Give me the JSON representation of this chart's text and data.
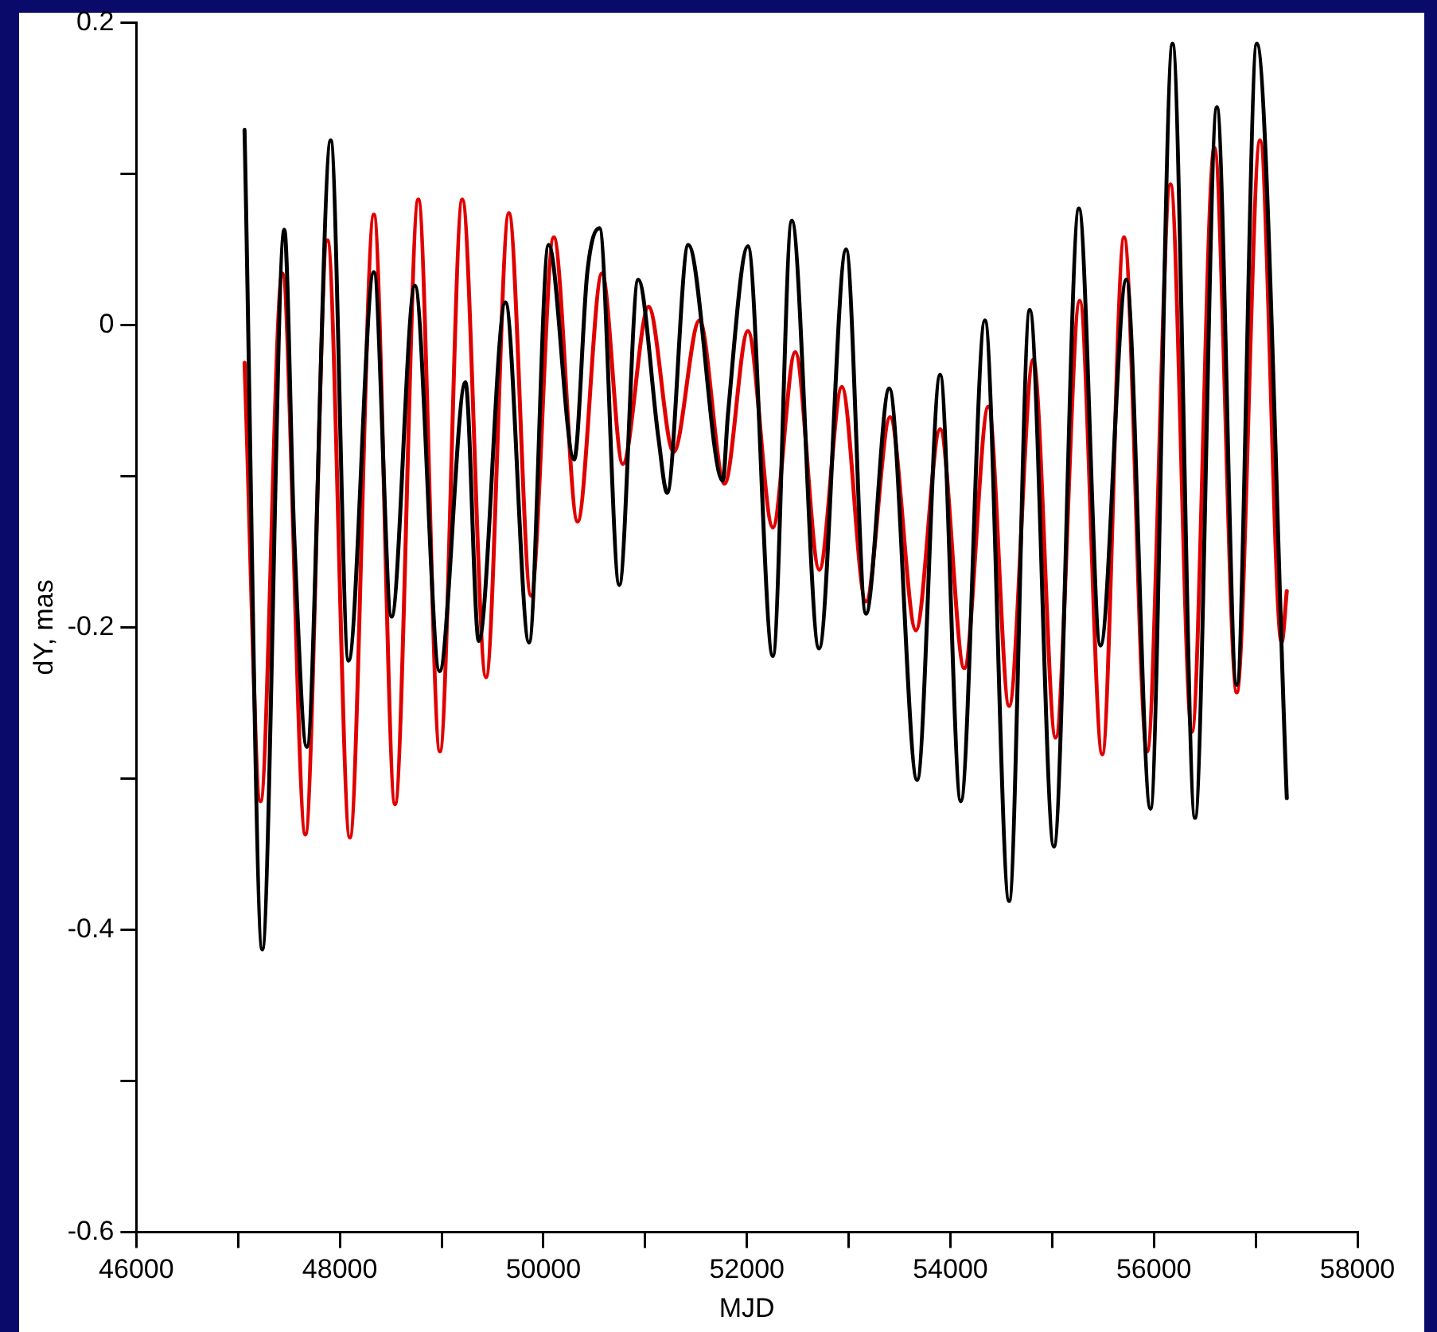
{
  "chart_data": {
    "type": "line",
    "xlabel": "MJD",
    "ylabel": "dY, mas",
    "xlim": [
      46000,
      58000
    ],
    "xticks": [
      46000,
      {
        "value": 47000,
        "label": null
      },
      48000,
      {
        "value": 49000,
        "label": null
      },
      50000,
      {
        "value": 51000,
        "label": null
      },
      52000,
      {
        "value": 53000,
        "label": null
      },
      54000,
      {
        "value": 55000,
        "label": null
      },
      56000,
      {
        "value": 57000,
        "label": null
      },
      58000
    ],
    "ylim": [
      -0.6,
      0.2
    ],
    "yticks": [
      -0.6,
      {
        "value": -0.5,
        "label": null
      },
      -0.4,
      {
        "value": -0.3,
        "label": null
      },
      -0.2,
      {
        "value": -0.1,
        "label": null
      },
      0,
      {
        "value": 0.1,
        "label": null
      },
      0.2
    ],
    "grid": false,
    "legend": false,
    "marker": "none",
    "line_style": "solid",
    "series": [
      {
        "color": "#000000",
        "x": [
          47063,
          47237,
          47454,
          47551,
          47675,
          47910,
          48085,
          48334,
          48508,
          48737,
          48980,
          49234,
          49365,
          49627,
          49859,
          50051,
          50302,
          50432,
          50551,
          50746,
          50932,
          51131,
          51216,
          51424,
          51763,
          51814,
          52010,
          52255,
          52441,
          52709,
          52975,
          53170,
          53399,
          53673,
          53899,
          54102,
          54339,
          54577,
          54780,
          55017,
          55263,
          55475,
          55729,
          55966,
          56183,
          56404,
          56619,
          56814,
          57011,
          57306
        ],
        "values": [
          0.129,
          -0.413,
          0.063,
          -0.139,
          -0.279,
          0.122,
          -0.222,
          0.035,
          -0.193,
          0.026,
          -0.229,
          -0.038,
          -0.209,
          0.015,
          -0.21,
          0.053,
          -0.089,
          0.035,
          0.064,
          -0.172,
          0.03,
          -0.075,
          -0.111,
          0.053,
          -0.103,
          -0.059,
          0.052,
          -0.219,
          0.069,
          -0.214,
          0.05,
          -0.191,
          -0.042,
          -0.301,
          -0.033,
          -0.315,
          0.003,
          -0.381,
          0.01,
          -0.345,
          0.077,
          -0.212,
          0.03,
          -0.32,
          0.186,
          -0.326,
          0.144,
          -0.238,
          0.186,
          -0.313
        ]
      },
      {
        "color": "#e00000",
        "x": [
          47063,
          47220,
          47434,
          47661,
          47878,
          48098,
          48334,
          48542,
          48771,
          48983,
          49203,
          49436,
          49661,
          49878,
          50102,
          50336,
          50576,
          50780,
          51034,
          51280,
          51534,
          51780,
          52010,
          52255,
          52475,
          52712,
          52933,
          53170,
          53407,
          53661,
          53899,
          54136,
          54373,
          54577,
          54814,
          55034,
          55271,
          55492,
          55707,
          55933,
          56163,
          56373,
          56594,
          56814,
          57043,
          57255,
          57306
        ],
        "values": [
          -0.025,
          -0.315,
          0.034,
          -0.337,
          0.056,
          -0.339,
          0.073,
          -0.317,
          0.083,
          -0.282,
          0.083,
          -0.233,
          0.074,
          -0.179,
          0.058,
          -0.13,
          0.034,
          -0.092,
          0.012,
          -0.084,
          0.003,
          -0.105,
          -0.004,
          -0.134,
          -0.018,
          -0.162,
          -0.041,
          -0.183,
          -0.061,
          -0.202,
          -0.069,
          -0.227,
          -0.054,
          -0.252,
          -0.023,
          -0.273,
          0.016,
          -0.284,
          0.058,
          -0.282,
          0.093,
          -0.269,
          0.117,
          -0.243,
          0.122,
          -0.21,
          -0.176
        ]
      }
    ]
  }
}
